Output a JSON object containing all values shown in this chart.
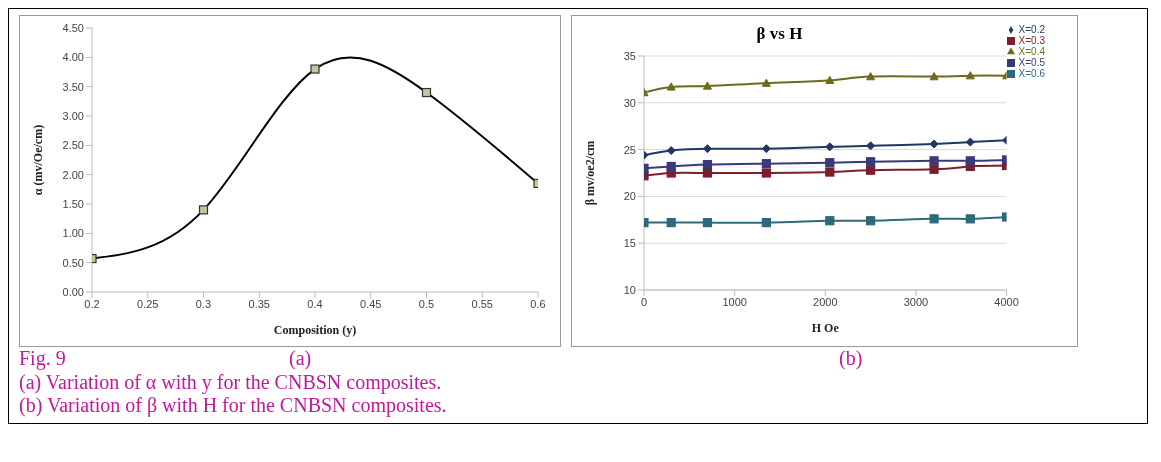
{
  "chart_data": [
    {
      "type": "line",
      "xlabel": "Composition (y)",
      "ylabel": "α (mv/Oe/cm)",
      "x": [
        0.2,
        0.3,
        0.4,
        0.5,
        0.6
      ],
      "values": [
        0.57,
        1.4,
        3.8,
        3.4,
        1.85
      ],
      "color": "#000000",
      "colors": [
        "#c4c79a",
        "#c4c79a",
        "#c4c79a",
        "#c4c79a",
        "#c4c79a"
      ],
      "marker": "square",
      "grid": false,
      "legend": false,
      "xlim": [
        0.2,
        0.6
      ],
      "xticks": [
        0.2,
        0.25,
        0.3,
        0.35,
        0.4,
        0.45,
        0.5,
        0.55,
        0.6
      ],
      "ylim": [
        0,
        4.5
      ],
      "yticks": [
        {
          "value": 0,
          "label": "0.00"
        },
        {
          "value": 0.5,
          "label": "0.50"
        },
        {
          "value": 1,
          "label": "1.00"
        },
        {
          "value": 1.5,
          "label": "1.50"
        },
        {
          "value": 2,
          "label": "2.00"
        },
        {
          "value": 2.5,
          "label": "2.50"
        },
        {
          "value": 3,
          "label": "3.00"
        },
        {
          "value": 3.5,
          "label": "3.50"
        },
        {
          "value": 4,
          "label": "4.00"
        },
        {
          "value": 4.5,
          "label": "4.50"
        }
      ],
      "annotations": [
        "Fig. 9",
        "(a)",
        "(a) Variation of α with y for the CNBSN composites."
      ]
    },
    {
      "type": "line",
      "title": "β vs H",
      "xlabel": "H Oe",
      "ylabel": "β mv/oe2/cm",
      "x": [
        0,
        300,
        700,
        1350,
        2050,
        2500,
        3200,
        3600,
        4000
      ],
      "grid": "y",
      "legend": "right",
      "series": [
        {
          "name": "X=0.2",
          "color": "#1f3864",
          "marker": "diamond",
          "values": [
            24.4,
            24.9,
            25.1,
            25.1,
            25.3,
            25.4,
            25.6,
            25.8,
            26.0
          ]
        },
        {
          "name": "X=0.3",
          "color": "#7b1f2e",
          "marker": "square",
          "values": [
            22.2,
            22.5,
            22.5,
            22.5,
            22.6,
            22.8,
            22.9,
            23.2,
            23.3
          ]
        },
        {
          "name": "X=0.4",
          "color": "#6b6b1a",
          "marker": "triangle",
          "values": [
            31.1,
            31.7,
            31.8,
            32.1,
            32.4,
            32.8,
            32.8,
            32.9,
            32.9
          ]
        },
        {
          "name": "X=0.5",
          "color": "#3a3a7a",
          "marker": "square",
          "values": [
            23.0,
            23.2,
            23.4,
            23.5,
            23.6,
            23.7,
            23.8,
            23.8,
            23.9
          ]
        },
        {
          "name": "X=0.6",
          "color": "#2d6b7a",
          "marker": "square",
          "values": [
            17.2,
            17.2,
            17.2,
            17.2,
            17.4,
            17.4,
            17.6,
            17.6,
            17.8
          ]
        }
      ],
      "xlim": [
        0,
        4000
      ],
      "xticks": [
        0,
        1000,
        2000,
        3000,
        4000
      ],
      "ylim": [
        10,
        35
      ],
      "yticks": [
        10,
        15,
        20,
        25,
        30,
        35
      ],
      "annotations": [
        "(b)",
        "(b) Variation of β with H for the CNBSN composites."
      ]
    }
  ]
}
